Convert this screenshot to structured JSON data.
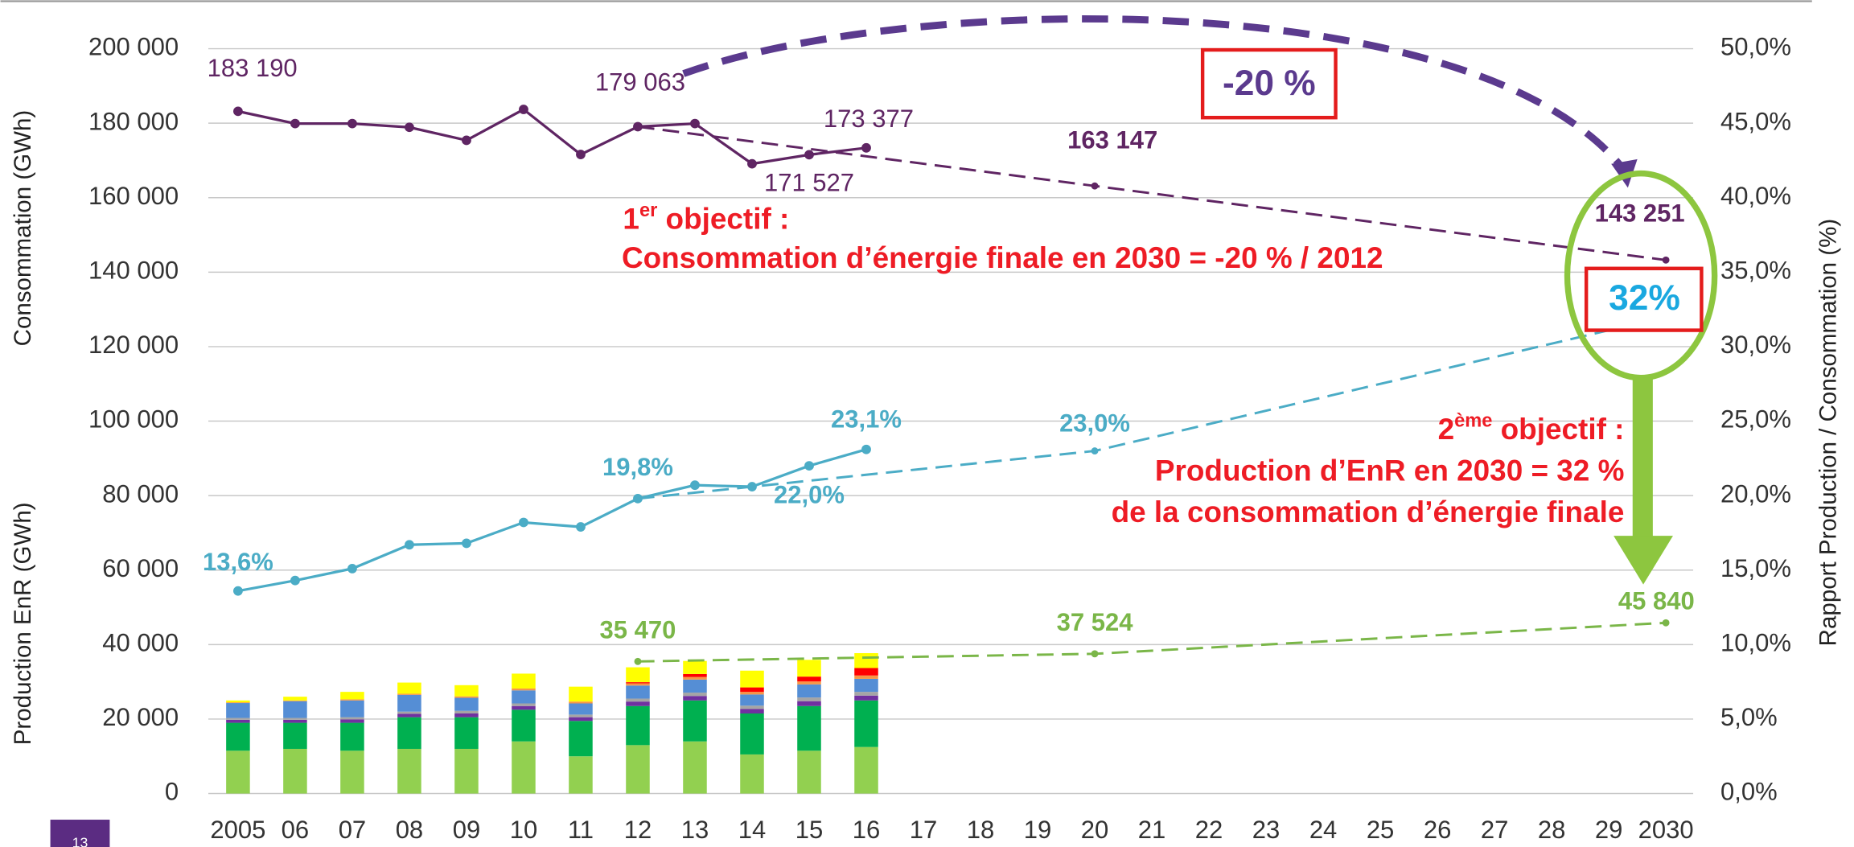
{
  "chart_data": {
    "type": "combo",
    "y_label": "Consommation (GWh)",
    "y_label_2": "Production EnR (GWh)",
    "y2_label": "Rapport Production / Consommation (%)",
    "xlim": [
      2005,
      2030
    ],
    "xticks": [
      2005,
      {
        "value": 2006,
        "label": "06"
      },
      {
        "value": 2007,
        "label": "07"
      },
      {
        "value": 2008,
        "label": "08"
      },
      {
        "value": 2009,
        "label": "09"
      },
      {
        "value": 2010,
        "label": "10"
      },
      {
        "value": 2011,
        "label": "11"
      },
      {
        "value": 2012,
        "label": "12"
      },
      {
        "value": 2013,
        "label": "13"
      },
      {
        "value": 2014,
        "label": "14"
      },
      {
        "value": 2015,
        "label": "15"
      },
      {
        "value": 2016,
        "label": "16"
      },
      {
        "value": 2017,
        "label": "17"
      },
      {
        "value": 2018,
        "label": "18"
      },
      {
        "value": 2019,
        "label": "19"
      },
      {
        "value": 2020,
        "label": "20"
      },
      {
        "value": 2021,
        "label": "21"
      },
      {
        "value": 2022,
        "label": "22"
      },
      {
        "value": 2023,
        "label": "23"
      },
      {
        "value": 2024,
        "label": "24"
      },
      {
        "value": 2025,
        "label": "25"
      },
      {
        "value": 2026,
        "label": "26"
      },
      {
        "value": 2027,
        "label": "27"
      },
      {
        "value": 2028,
        "label": "28"
      },
      {
        "value": 2029,
        "label": "29"
      },
      2030
    ],
    "ylim": [
      0,
      200000
    ],
    "yticks": [
      0,
      {
        "value": 20000,
        "label": "20 000"
      },
      {
        "value": 40000,
        "label": "40 000"
      },
      {
        "value": 60000,
        "label": "60 000"
      },
      {
        "value": 80000,
        "label": "80 000"
      },
      {
        "value": 100000,
        "label": "100 000"
      },
      {
        "value": 120000,
        "label": "120 000"
      },
      {
        "value": 140000,
        "label": "140 000"
      },
      {
        "value": 160000,
        "label": "160 000"
      },
      {
        "value": 180000,
        "label": "180 000"
      },
      {
        "value": 200000,
        "label": "200 000"
      }
    ],
    "y2lim": [
      0,
      50
    ],
    "y2ticks": [
      {
        "value": 0,
        "label": "0,0%"
      },
      {
        "value": 5,
        "label": "5,0%"
      },
      {
        "value": 10,
        "label": "10,0%"
      },
      {
        "value": 15,
        "label": "15,0%"
      },
      {
        "value": 20,
        "label": "20,0%"
      },
      {
        "value": 25,
        "label": "25,0%"
      },
      {
        "value": 30,
        "label": "30,0%"
      },
      {
        "value": 35,
        "label": "35,0%"
      },
      {
        "value": 40,
        "label": "40,0%"
      },
      {
        "value": 45,
        "label": "45,0%"
      },
      {
        "value": 50,
        "label": "50,0%"
      }
    ],
    "grid": true,
    "series": [
      {
        "type": "line",
        "color": "#5f2563",
        "x": [
          2005,
          2006,
          2007,
          2008,
          2009,
          2010,
          2011,
          2012,
          2013,
          2014,
          2015,
          2016
        ],
        "values": [
          183190,
          179900,
          179900,
          178900,
          175400,
          183700,
          171600,
          179063,
          179900,
          169100,
          171527,
          173377
        ],
        "value_labels": [
          "183 190",
          null,
          null,
          null,
          null,
          null,
          null,
          "179 063",
          null,
          null,
          "171 527",
          "173 377"
        ]
      },
      {
        "type": "line",
        "dashed": true,
        "color": "#5f2563",
        "x": [
          2012,
          2020,
          2030
        ],
        "values": [
          179063,
          163147,
          143251
        ],
        "value_labels": [
          null,
          "163 147",
          "143 251"
        ]
      },
      {
        "type": "line",
        "axis": "y2",
        "color": "#4bacc6",
        "x": [
          2005,
          2006,
          2007,
          2008,
          2009,
          2010,
          2011,
          2012,
          2013,
          2014,
          2015,
          2016
        ],
        "values": [
          13.6,
          14.3,
          15.1,
          16.7,
          16.8,
          18.2,
          17.9,
          19.8,
          20.7,
          20.6,
          22.0,
          23.1
        ],
        "value_labels": [
          "13,6%",
          null,
          null,
          null,
          null,
          null,
          null,
          "19,8%",
          null,
          null,
          "22,0%",
          "23,1%"
        ]
      },
      {
        "type": "line",
        "axis": "y2",
        "dashed": true,
        "color": "#4bacc6",
        "x": [
          2012,
          2020,
          2030
        ],
        "values": [
          19.8,
          23.0,
          32
        ],
        "value_labels": [
          null,
          "23,0%",
          "32%"
        ]
      },
      {
        "type": "line",
        "dashed": true,
        "color": "#7ab648",
        "x": [
          2012,
          2020,
          2030
        ],
        "values": [
          35470,
          37524,
          45840
        ],
        "value_labels": [
          "35 470",
          "37 524",
          "45 840"
        ]
      },
      {
        "type": "bar",
        "color": "#92d050",
        "x": [
          2005,
          2006,
          2007,
          2008,
          2009,
          2010,
          2011,
          2012,
          2013,
          2014,
          2015,
          2016
        ],
        "values": [
          11500,
          12000,
          11500,
          12000,
          12000,
          14000,
          10000,
          13000,
          14000,
          10500,
          11500,
          12500
        ]
      },
      {
        "type": "bar",
        "color": "#00b050",
        "x": [
          2005,
          2006,
          2007,
          2008,
          2009,
          2010,
          2011,
          2012,
          2013,
          2014,
          2015,
          2016
        ],
        "values": [
          7500,
          7000,
          7500,
          8500,
          8500,
          8500,
          9500,
          10500,
          11000,
          11000,
          12000,
          12500
        ]
      },
      {
        "type": "bar",
        "color": "#7030a0",
        "x": [
          2005,
          2006,
          2007,
          2008,
          2009,
          2010,
          2011,
          2012,
          2013,
          2014,
          2015,
          2016
        ],
        "values": [
          800,
          800,
          900,
          900,
          1000,
          1000,
          1000,
          1200,
          1200,
          1200,
          1300,
          1300
        ]
      },
      {
        "type": "bar",
        "color": "#a5a5a5",
        "x": [
          2005,
          2006,
          2007,
          2008,
          2009,
          2010,
          2011,
          2012,
          2013,
          2014,
          2015,
          2016
        ],
        "values": [
          500,
          500,
          600,
          600,
          700,
          700,
          700,
          800,
          900,
          900,
          1000,
          1000
        ]
      },
      {
        "type": "bar",
        "color": "#558ed5",
        "x": [
          2005,
          2006,
          2007,
          2008,
          2009,
          2010,
          2011,
          2012,
          2013,
          2014,
          2015,
          2016
        ],
        "values": [
          4000,
          4500,
          4500,
          4500,
          3500,
          3500,
          3000,
          3500,
          3500,
          3000,
          3500,
          3500
        ]
      },
      {
        "type": "bar",
        "color": "#f79646",
        "x": [
          2005,
          2006,
          2007,
          2008,
          2009,
          2010,
          2011,
          2012,
          2013,
          2014,
          2015,
          2016
        ],
        "values": [
          200,
          200,
          300,
          300,
          400,
          500,
          500,
          600,
          700,
          700,
          800,
          900
        ]
      },
      {
        "type": "bar",
        "color": "#ff0000",
        "x": [
          2005,
          2006,
          2007,
          2008,
          2009,
          2010,
          2011,
          2012,
          2013,
          2014,
          2015,
          2016
        ],
        "values": [
          0,
          0,
          0,
          0,
          0,
          0,
          0,
          300,
          800,
          1200,
          1300,
          2000
        ]
      },
      {
        "type": "bar",
        "color": "#ffff00",
        "x": [
          2005,
          2006,
          2007,
          2008,
          2009,
          2010,
          2011,
          2012,
          2013,
          2014,
          2015,
          2016
        ],
        "values": [
          500,
          1000,
          2000,
          3000,
          3000,
          4000,
          4000,
          4000,
          3500,
          4500,
          4500,
          4000
        ]
      }
    ]
  },
  "annotations": {
    "reduction": "-20 %",
    "objective1": {
      "number": "1",
      "suffix": "er",
      "text": " objectif :"
    },
    "objective1_detail": "Consommation d’énergie finale en 2030 = -20 % / 2012",
    "objective2": {
      "number": "2",
      "suffix": "ème",
      "text": " objectif :"
    },
    "objective2_detail_1": "Production d’EnR en 2030 = 32 %",
    "objective2_detail_2": "de la consommation d’énergie finale"
  },
  "page_number": "13"
}
